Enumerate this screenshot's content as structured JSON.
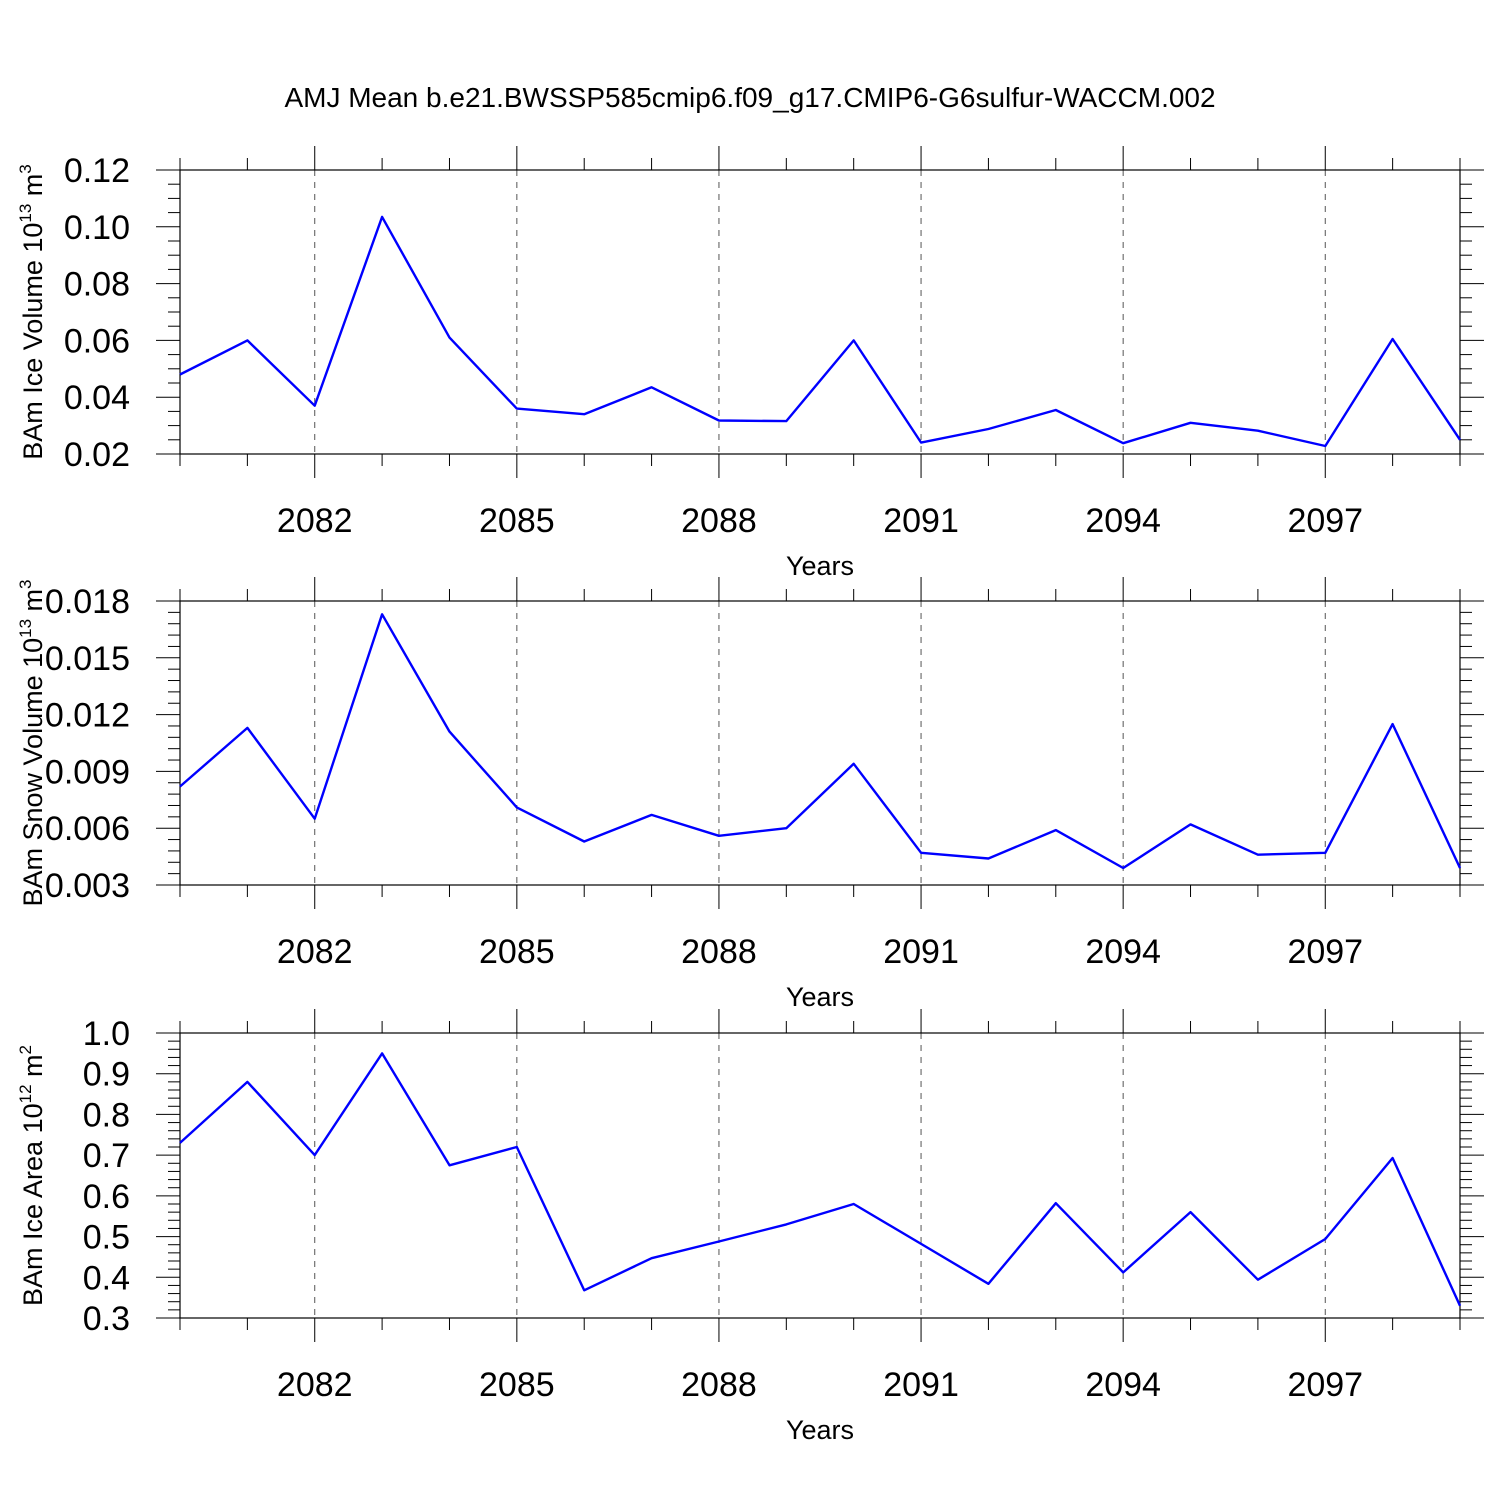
{
  "title": "AMJ Mean b.e21.BWSSP585cmip6.f09_g17.CMIP6-G6sulfur-WACCM.002",
  "colors": {
    "line": "#0000ff",
    "axes": "#000000",
    "grid": "#555555"
  },
  "chart_data": [
    {
      "type": "line",
      "xlabel": "Years",
      "ylabel": {
        "text": "BAm Ice Volume 10",
        "exp": "13",
        "unit": " m",
        "unit_exp": "3"
      },
      "xlim": [
        2080,
        2099
      ],
      "ylim": [
        0.02,
        0.12
      ],
      "x_ticks": [
        2082,
        2085,
        2088,
        2091,
        2094,
        2097
      ],
      "x_tick_labels": [
        "2082",
        "2085",
        "2088",
        "2091",
        "2094",
        "2097"
      ],
      "y_ticks": [
        0.02,
        0.04,
        0.06,
        0.08,
        0.1,
        0.12
      ],
      "y_tick_labels": [
        "0.02",
        "0.04",
        "0.06",
        "0.08",
        "0.10",
        "0.12"
      ],
      "x_minor_step": 1,
      "y_minor_step": 0.005,
      "grid": "vertical dashed at major x ticks",
      "x": [
        2080,
        2081,
        2082,
        2083,
        2084,
        2085,
        2086,
        2087,
        2088,
        2089,
        2090,
        2091,
        2092,
        2093,
        2094,
        2095,
        2096,
        2097,
        2098,
        2099
      ],
      "values": [
        0.048,
        0.06,
        0.037,
        0.1035,
        0.061,
        0.036,
        0.034,
        0.0435,
        0.0318,
        0.0316,
        0.06,
        0.024,
        0.0288,
        0.0355,
        0.0238,
        0.031,
        0.0282,
        0.0228,
        0.0605,
        0.025
      ]
    },
    {
      "type": "line",
      "xlabel": "Years",
      "ylabel": {
        "text": "BAm Snow Volume 10",
        "exp": "13",
        "unit": " m",
        "unit_exp": "3"
      },
      "xlim": [
        2080,
        2099
      ],
      "ylim": [
        0.003,
        0.018
      ],
      "x_ticks": [
        2082,
        2085,
        2088,
        2091,
        2094,
        2097
      ],
      "x_tick_labels": [
        "2082",
        "2085",
        "2088",
        "2091",
        "2094",
        "2097"
      ],
      "y_ticks": [
        0.003,
        0.006,
        0.009,
        0.012,
        0.015,
        0.018
      ],
      "y_tick_labels": [
        "0.003",
        "0.006",
        "0.009",
        "0.012",
        "0.015",
        "0.018"
      ],
      "x_minor_step": 1,
      "y_minor_step": 0.0006,
      "grid": "vertical dashed at major x ticks",
      "x": [
        2080,
        2081,
        2082,
        2083,
        2084,
        2085,
        2086,
        2087,
        2088,
        2089,
        2090,
        2091,
        2092,
        2093,
        2094,
        2095,
        2096,
        2097,
        2098,
        2099
      ],
      "values": [
        0.0082,
        0.0113,
        0.0065,
        0.0173,
        0.0111,
        0.0071,
        0.0053,
        0.0067,
        0.0056,
        0.006,
        0.0094,
        0.0047,
        0.0044,
        0.0059,
        0.0039,
        0.0062,
        0.0046,
        0.0047,
        0.0115,
        0.0039
      ]
    },
    {
      "type": "line",
      "xlabel": "Years",
      "ylabel": {
        "text": "BAm Ice Area 10",
        "exp": "12",
        "unit": " m",
        "unit_exp": "2"
      },
      "xlim": [
        2080,
        2099
      ],
      "ylim": [
        0.3,
        1.0
      ],
      "x_ticks": [
        2082,
        2085,
        2088,
        2091,
        2094,
        2097
      ],
      "x_tick_labels": [
        "2082",
        "2085",
        "2088",
        "2091",
        "2094",
        "2097"
      ],
      "y_ticks": [
        0.3,
        0.4,
        0.5,
        0.6,
        0.7,
        0.8,
        0.9,
        1.0
      ],
      "y_tick_labels": [
        "0.3",
        "0.4",
        "0.5",
        "0.6",
        "0.7",
        "0.8",
        "0.9",
        "1.0"
      ],
      "x_minor_step": 1,
      "y_minor_step": 0.02,
      "grid": "vertical dashed at major x ticks",
      "x": [
        2080,
        2081,
        2082,
        2083,
        2084,
        2085,
        2086,
        2087,
        2088,
        2089,
        2090,
        2091,
        2092,
        2093,
        2094,
        2095,
        2096,
        2097,
        2098,
        2099
      ],
      "values": [
        0.73,
        0.88,
        0.7,
        0.95,
        0.675,
        0.72,
        0.368,
        0.447,
        0.488,
        0.53,
        0.58,
        0.482,
        0.384,
        0.582,
        0.412,
        0.56,
        0.394,
        0.494,
        0.693,
        0.33
      ]
    }
  ]
}
